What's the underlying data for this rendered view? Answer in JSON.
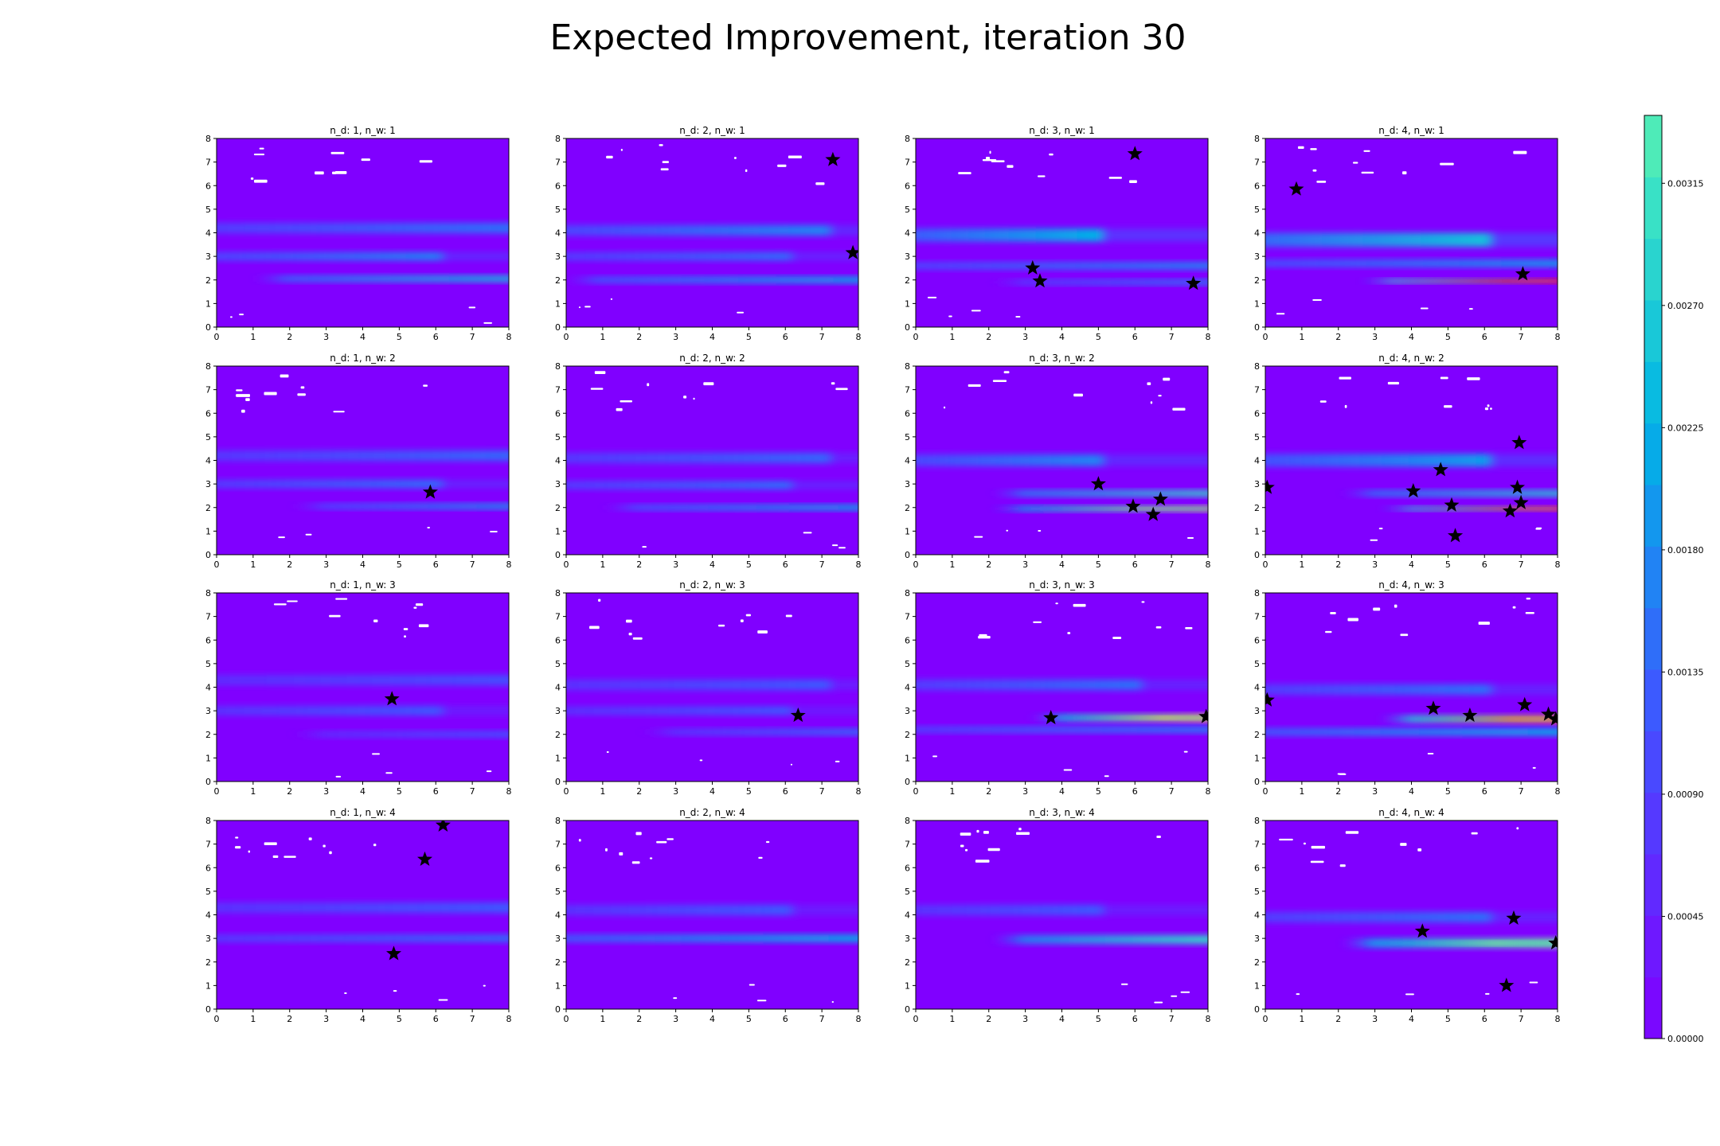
{
  "figure": {
    "title": "Expected Improvement, iteration 30"
  },
  "chart_data": {
    "type": "heatmap",
    "title": "Expected Improvement, iteration 30",
    "grid": {
      "rows": 4,
      "cols": 4
    },
    "x_range": [
      0,
      8
    ],
    "y_range": [
      0,
      8
    ],
    "x_ticks": [
      "0",
      "1",
      "2",
      "3",
      "4",
      "5",
      "6",
      "7",
      "8"
    ],
    "y_ticks": [
      "0",
      "1",
      "2",
      "3",
      "4",
      "5",
      "6",
      "7",
      "8"
    ],
    "colormap": "rainbow",
    "colors": {
      "background": "#8000ff",
      "low": "#8000ff",
      "mid_low": "#2a7fff",
      "mid": "#00c0e0",
      "mid_high": "#64f0b4",
      "high_yellow": "#ffe040",
      "peak_red": "#ff1010",
      "marker": "#000000",
      "voids": "#ffffff"
    },
    "colorbar": {
      "range": [
        0.0,
        0.0034
      ],
      "ticks": [
        "0.00000",
        "0.00045",
        "0.00090",
        "0.00135",
        "0.00180",
        "0.00225",
        "0.00270",
        "0.00315"
      ]
    },
    "panels": [
      {
        "title": "n_d: 1, n_w: 1",
        "bands": [
          {
            "y": 4.2,
            "w": 0.45,
            "i": 0.3,
            "x0": 0,
            "x1": 8
          },
          {
            "y": 3.0,
            "w": 0.35,
            "i": 0.35,
            "x0": 0,
            "x1": 6
          },
          {
            "y": 2.05,
            "w": 0.25,
            "i": 0.5,
            "x0": 2,
            "x1": 8
          }
        ],
        "stars": []
      },
      {
        "title": "n_d: 2, n_w: 1",
        "bands": [
          {
            "y": 4.1,
            "w": 0.45,
            "i": 0.35,
            "x0": 0,
            "x1": 7
          },
          {
            "y": 3.0,
            "w": 0.35,
            "i": 0.3,
            "x0": 0,
            "x1": 6
          },
          {
            "y": 2.0,
            "w": 0.25,
            "i": 0.45,
            "x0": 1,
            "x1": 8
          }
        ],
        "stars": [
          [
            7.3,
            7.1
          ],
          [
            7.85,
            3.15
          ]
        ]
      },
      {
        "title": "n_d: 3, n_w: 1",
        "bands": [
          {
            "y": 3.9,
            "w": 0.55,
            "i": 0.45,
            "x0": 0,
            "x1": 5
          },
          {
            "y": 2.6,
            "w": 0.3,
            "i": 0.35,
            "x0": 0,
            "x1": 8
          },
          {
            "y": 1.9,
            "w": 0.2,
            "i": 0.35,
            "x0": 3,
            "x1": 8
          }
        ],
        "stars": [
          [
            6.0,
            7.35
          ],
          [
            3.2,
            2.5
          ],
          [
            3.4,
            1.95
          ],
          [
            7.6,
            1.85
          ]
        ]
      },
      {
        "title": "n_d: 4, n_w: 1",
        "bands": [
          {
            "y": 3.7,
            "w": 0.6,
            "i": 0.5,
            "x0": 0,
            "x1": 6
          },
          {
            "y": 2.7,
            "w": 0.3,
            "i": 0.4,
            "x0": 0,
            "x1": 8
          },
          {
            "y": 1.95,
            "w": 0.16,
            "i": 1.0,
            "x0": 3.5,
            "x1": 8
          }
        ],
        "stars": [
          [
            0.85,
            5.85
          ],
          [
            7.05,
            2.25
          ]
        ]
      },
      {
        "title": "n_d: 1, n_w: 2",
        "bands": [
          {
            "y": 4.2,
            "w": 0.45,
            "i": 0.28,
            "x0": 0,
            "x1": 8
          },
          {
            "y": 3.0,
            "w": 0.35,
            "i": 0.3,
            "x0": 0,
            "x1": 6
          },
          {
            "y": 2.05,
            "w": 0.22,
            "i": 0.4,
            "x0": 3,
            "x1": 8
          }
        ],
        "stars": [
          [
            5.85,
            2.65
          ]
        ]
      },
      {
        "title": "n_d: 2, n_w: 2",
        "bands": [
          {
            "y": 4.1,
            "w": 0.45,
            "i": 0.28,
            "x0": 0,
            "x1": 7
          },
          {
            "y": 2.95,
            "w": 0.35,
            "i": 0.3,
            "x0": 0,
            "x1": 6
          },
          {
            "y": 2.0,
            "w": 0.22,
            "i": 0.45,
            "x0": 2,
            "x1": 8
          }
        ],
        "stars": []
      },
      {
        "title": "n_d: 3, n_w: 2",
        "bands": [
          {
            "y": 4.0,
            "w": 0.5,
            "i": 0.35,
            "x0": 0,
            "x1": 5
          },
          {
            "y": 2.6,
            "w": 0.25,
            "i": 0.6,
            "x0": 3,
            "x1": 8
          },
          {
            "y": 1.95,
            "w": 0.2,
            "i": 0.75,
            "x0": 3,
            "x1": 8
          }
        ],
        "stars": [
          [
            5.0,
            3.0
          ],
          [
            5.95,
            2.05
          ],
          [
            6.7,
            2.35
          ],
          [
            6.5,
            1.7
          ]
        ]
      },
      {
        "title": "n_d: 4, n_w: 2",
        "bands": [
          {
            "y": 4.0,
            "w": 0.55,
            "i": 0.4,
            "x0": 0,
            "x1": 6
          },
          {
            "y": 2.6,
            "w": 0.25,
            "i": 0.55,
            "x0": 3,
            "x1": 8
          },
          {
            "y": 1.95,
            "w": 0.16,
            "i": 0.95,
            "x0": 4,
            "x1": 8
          }
        ],
        "stars": [
          [
            0.05,
            2.85
          ],
          [
            4.05,
            2.7
          ],
          [
            4.8,
            3.6
          ],
          [
            6.95,
            4.75
          ],
          [
            5.1,
            2.1
          ],
          [
            6.9,
            2.85
          ],
          [
            7.0,
            2.2
          ],
          [
            6.7,
            1.85
          ],
          [
            5.2,
            0.8
          ]
        ]
      },
      {
        "title": "n_d: 1, n_w: 3",
        "bands": [
          {
            "y": 4.3,
            "w": 0.45,
            "i": 0.22,
            "x0": 0,
            "x1": 8
          },
          {
            "y": 3.0,
            "w": 0.4,
            "i": 0.25,
            "x0": 0,
            "x1": 6
          },
          {
            "y": 2.0,
            "w": 0.25,
            "i": 0.25,
            "x0": 3,
            "x1": 8
          }
        ],
        "stars": [
          [
            4.8,
            3.5
          ]
        ]
      },
      {
        "title": "n_d: 2, n_w: 3",
        "bands": [
          {
            "y": 4.1,
            "w": 0.45,
            "i": 0.25,
            "x0": 0,
            "x1": 7
          },
          {
            "y": 3.0,
            "w": 0.35,
            "i": 0.25,
            "x0": 0,
            "x1": 6
          },
          {
            "y": 2.1,
            "w": 0.25,
            "i": 0.3,
            "x0": 3,
            "x1": 8
          }
        ],
        "stars": [
          [
            6.35,
            2.8
          ]
        ]
      },
      {
        "title": "n_d: 3, n_w: 3",
        "bands": [
          {
            "y": 4.1,
            "w": 0.45,
            "i": 0.3,
            "x0": 0,
            "x1": 6
          },
          {
            "y": 2.7,
            "w": 0.28,
            "i": 0.8,
            "x0": 4,
            "x1": 8
          },
          {
            "y": 2.2,
            "w": 0.25,
            "i": 0.35,
            "x0": 0,
            "x1": 8
          }
        ],
        "stars": [
          [
            3.7,
            2.7
          ],
          [
            7.95,
            2.75
          ]
        ]
      },
      {
        "title": "n_d: 4, n_w: 3",
        "bands": [
          {
            "y": 3.9,
            "w": 0.45,
            "i": 0.3,
            "x0": 0,
            "x1": 6
          },
          {
            "y": 2.65,
            "w": 0.3,
            "i": 0.9,
            "x0": 4,
            "x1": 8
          },
          {
            "y": 2.1,
            "w": 0.3,
            "i": 0.45,
            "x0": 0,
            "x1": 8
          }
        ],
        "stars": [
          [
            0.05,
            3.45
          ],
          [
            4.6,
            3.1
          ],
          [
            5.6,
            2.8
          ],
          [
            7.1,
            3.25
          ],
          [
            7.75,
            2.85
          ],
          [
            7.95,
            2.65
          ]
        ]
      },
      {
        "title": "n_d: 1, n_w: 4",
        "bands": [
          {
            "y": 4.3,
            "w": 0.45,
            "i": 0.25,
            "x0": 0,
            "x1": 8
          },
          {
            "y": 3.0,
            "w": 0.3,
            "i": 0.3,
            "x0": 0,
            "x1": 8
          }
        ],
        "stars": [
          [
            6.2,
            7.8
          ],
          [
            5.7,
            6.35
          ],
          [
            4.85,
            2.35
          ]
        ]
      },
      {
        "title": "n_d: 2, n_w: 4",
        "bands": [
          {
            "y": 4.2,
            "w": 0.45,
            "i": 0.25,
            "x0": 0,
            "x1": 6
          },
          {
            "y": 3.0,
            "w": 0.3,
            "i": 0.45,
            "x0": 0,
            "x1": 8
          }
        ],
        "stars": []
      },
      {
        "title": "n_d: 3, n_w: 4",
        "bands": [
          {
            "y": 4.2,
            "w": 0.45,
            "i": 0.25,
            "x0": 0,
            "x1": 5
          },
          {
            "y": 2.95,
            "w": 0.35,
            "i": 0.6,
            "x0": 3,
            "x1": 8
          }
        ],
        "stars": []
      },
      {
        "title": "n_d: 4, n_w: 4",
        "bands": [
          {
            "y": 3.9,
            "w": 0.45,
            "i": 0.3,
            "x0": 0,
            "x1": 6
          },
          {
            "y": 2.8,
            "w": 0.38,
            "i": 0.7,
            "x0": 3,
            "x1": 8
          }
        ],
        "stars": [
          [
            4.3,
            3.3
          ],
          [
            6.8,
            3.85
          ],
          [
            6.6,
            1.0
          ],
          [
            7.95,
            2.8
          ]
        ]
      }
    ]
  }
}
